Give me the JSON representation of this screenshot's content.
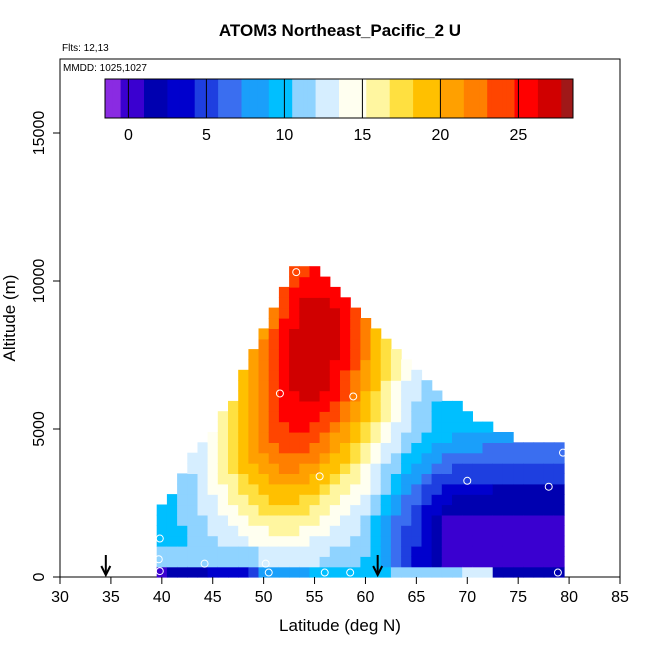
{
  "chart_data": {
    "type": "heatmap",
    "title": "ATOM3 Northeast_Pacific_2 U",
    "subtitle_flights": "Flts: 12,13",
    "subtitle_dates": "MMDD: 1025,1027",
    "xlabel": "Latitude (deg N)",
    "ylabel": "Altitude (m)",
    "xlim": [
      30,
      85
    ],
    "ylim": [
      0,
      17500
    ],
    "xticks": [
      30,
      35,
      40,
      45,
      50,
      55,
      60,
      65,
      70,
      75,
      80,
      85
    ],
    "yticks": [
      0,
      5000,
      10000,
      15000
    ],
    "colorbar": {
      "range": [
        -1.5,
        28.5
      ],
      "ticks": [
        0,
        5,
        10,
        15,
        20,
        25
      ],
      "colors": [
        "#8a2be2",
        "#3a00d0",
        "#0000b0",
        "#0000cd",
        "#1e3fe0",
        "#3a6ef0",
        "#1a9ffa",
        "#00bfff",
        "#8fd3ff",
        "#d6eeff",
        "#fffff0",
        "#fff6a0",
        "#ffe040",
        "#ffc000",
        "#ffa000",
        "#ff7f00",
        "#ff4500",
        "#ff0000",
        "#d00000",
        "#a01818"
      ]
    },
    "envelope_top": [
      {
        "lat": 39.5,
        "alt": 1500
      },
      {
        "lat": 41,
        "alt": 2500
      },
      {
        "lat": 44,
        "alt": 4200
      },
      {
        "lat": 47,
        "alt": 5500
      },
      {
        "lat": 49,
        "alt": 7200
      },
      {
        "lat": 51,
        "alt": 8600
      },
      {
        "lat": 52.5,
        "alt": 9800
      },
      {
        "lat": 53,
        "alt": 10400
      },
      {
        "lat": 56,
        "alt": 10000
      },
      {
        "lat": 58,
        "alt": 9200
      },
      {
        "lat": 61,
        "alt": 8000
      },
      {
        "lat": 64,
        "alt": 7000
      },
      {
        "lat": 67,
        "alt": 6000
      },
      {
        "lat": 71,
        "alt": 5000
      },
      {
        "lat": 75,
        "alt": 4300
      },
      {
        "lat": 79.5,
        "alt": 4300
      }
    ],
    "field_regions": [
      {
        "name": "surface-west",
        "value": 1,
        "lat": [
          39.5,
          50
        ],
        "alt": [
          0,
          400
        ]
      },
      {
        "name": "surface-mid",
        "value": 9,
        "lat": [
          50,
          62
        ],
        "alt": [
          0,
          400
        ]
      },
      {
        "name": "low-west",
        "value": 10,
        "lat": [
          39.5,
          50
        ],
        "alt": [
          400,
          1200
        ]
      },
      {
        "name": "north-low",
        "value": 3,
        "lat": [
          70,
          79.5
        ],
        "alt": [
          0,
          2500
        ]
      },
      {
        "name": "north-mid",
        "value": 7,
        "lat": [
          63,
          79.5
        ],
        "alt": [
          2500,
          4300
        ]
      },
      {
        "name": "core-jet",
        "value": 26,
        "lat": [
          53,
          59
        ],
        "alt": [
          6000,
          10000
        ]
      },
      {
        "name": "jet-flank",
        "value": 21,
        "lat": [
          48,
          58
        ],
        "alt": [
          3500,
          6000
        ]
      }
    ],
    "obs_points": [
      {
        "lat": 39.8,
        "alt": 1300
      },
      {
        "lat": 39.7,
        "alt": 600
      },
      {
        "lat": 39.8,
        "alt": 200
      },
      {
        "lat": 44.2,
        "alt": 450
      },
      {
        "lat": 50.2,
        "alt": 450
      },
      {
        "lat": 50.5,
        "alt": 150
      },
      {
        "lat": 51.6,
        "alt": 6200
      },
      {
        "lat": 53.2,
        "alt": 10300
      },
      {
        "lat": 58.8,
        "alt": 6100
      },
      {
        "lat": 55.5,
        "alt": 3400
      },
      {
        "lat": 56,
        "alt": 150
      },
      {
        "lat": 58.5,
        "alt": 150
      },
      {
        "lat": 70,
        "alt": 3250
      },
      {
        "lat": 78,
        "alt": 3050
      },
      {
        "lat": 79.4,
        "alt": 4200
      },
      {
        "lat": 78.9,
        "alt": 150
      }
    ],
    "arrows_lat": [
      34.5,
      61.2
    ],
    "grid": false
  }
}
